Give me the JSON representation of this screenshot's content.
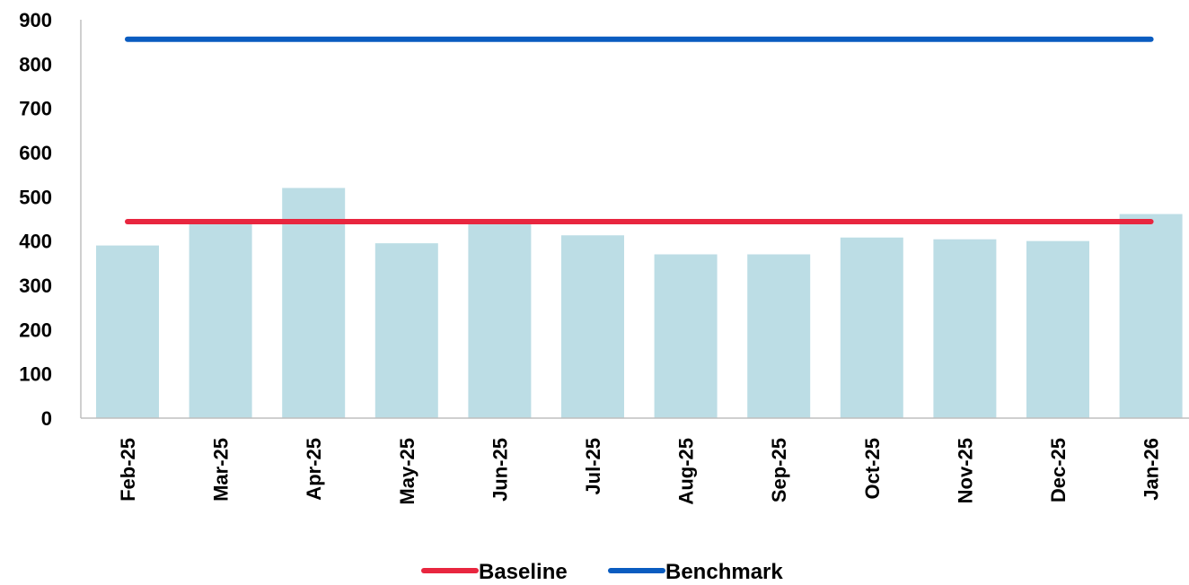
{
  "chart_data": {
    "type": "bar",
    "categories": [
      "Feb-25",
      "Mar-25",
      "Apr-25",
      "May-25",
      "Jun-25",
      "Jul-25",
      "Aug-25",
      "Sep-25",
      "Oct-25",
      "Nov-25",
      "Dec-25",
      "Jan-26"
    ],
    "series": [
      {
        "type": "bar",
        "values": [
          390,
          445,
          520,
          395,
          445,
          413,
          370,
          370,
          408,
          404,
          400,
          461
        ],
        "color": "#bcdde5"
      },
      {
        "name": "Baseline",
        "type": "line",
        "values": [
          444,
          444,
          444,
          444,
          444,
          444,
          444,
          444,
          444,
          444,
          444,
          444
        ],
        "color": "#e8263f"
      },
      {
        "name": "Benchmark",
        "type": "line",
        "values": [
          856,
          856,
          856,
          856,
          856,
          856,
          856,
          856,
          856,
          856,
          856,
          856
        ],
        "color": "#0a5cc0"
      }
    ],
    "title": "",
    "xlabel": "",
    "ylabel": "",
    "ylim": [
      0,
      900
    ],
    "yticks": [
      0,
      100,
      200,
      300,
      400,
      500,
      600,
      700,
      800,
      900
    ],
    "grid": false,
    "legend": {
      "position": "bottom-center",
      "entries": [
        "Baseline",
        "Benchmark"
      ]
    }
  }
}
